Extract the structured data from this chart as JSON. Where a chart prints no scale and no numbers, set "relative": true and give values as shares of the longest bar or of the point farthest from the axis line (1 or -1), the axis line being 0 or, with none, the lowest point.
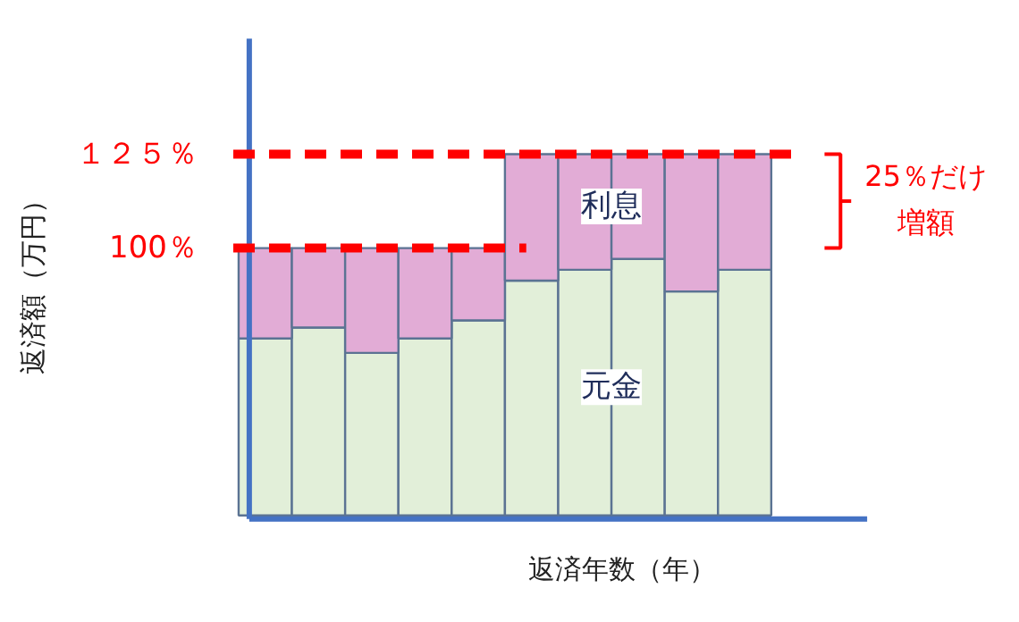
{
  "chart_data": {
    "type": "bar",
    "stacked": true,
    "relative": true,
    "xlabel": "返済年数（年）",
    "categories": [
      null,
      null,
      null,
      null,
      null,
      null,
      null,
      null,
      null,
      null
    ],
    "series": [
      {
        "name": "元金",
        "color": "#e2efd9",
        "values": [
          0.49,
          0.52,
          0.45,
          0.49,
          0.54,
          0.65,
          0.68,
          0.71,
          0.62,
          0.68
        ]
      },
      {
        "name": "利息",
        "color": "#e2acd6",
        "values": [
          0.25,
          0.22,
          0.29,
          0.25,
          0.2,
          0.35,
          0.32,
          0.29,
          0.38,
          0.32
        ]
      }
    ],
    "ref_lines": [
      {
        "axis": "y",
        "value": 1,
        "label": "１２５％",
        "color": "#ff0000",
        "line_style": "dashed"
      },
      {
        "axis": "y",
        "value": 0.74,
        "label": "100％",
        "color": "#ff0000",
        "line_style": "dashed"
      }
    ],
    "annotations": [
      "25％だけ",
      "増額",
      "返済額（万円）"
    ],
    "grid": false,
    "legend": false
  }
}
